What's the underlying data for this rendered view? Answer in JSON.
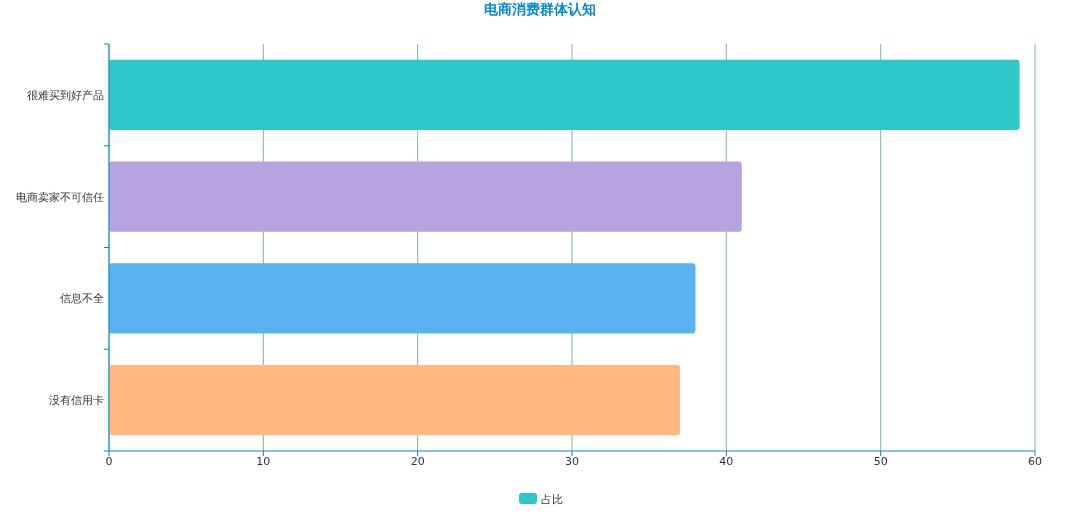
{
  "chart_data": {
    "type": "bar",
    "orientation": "horizontal",
    "title": "电商消费群体认知",
    "categories": [
      "很难买到好产品",
      "电商卖家不可信任",
      "信息不全",
      "没有信用卡"
    ],
    "series": [
      {
        "name": "占比",
        "color": "#2ec7c9",
        "colors": [
          "#2ec7c9",
          "#b6a2de",
          "#5ab1ef",
          "#ffb980"
        ],
        "values": [
          59,
          41,
          38,
          37
        ]
      }
    ],
    "xlim": [
      0,
      60
    ],
    "xticks": [
      0,
      10,
      20,
      30,
      40,
      50,
      60
    ],
    "grid": "x",
    "legend": "bottom"
  }
}
